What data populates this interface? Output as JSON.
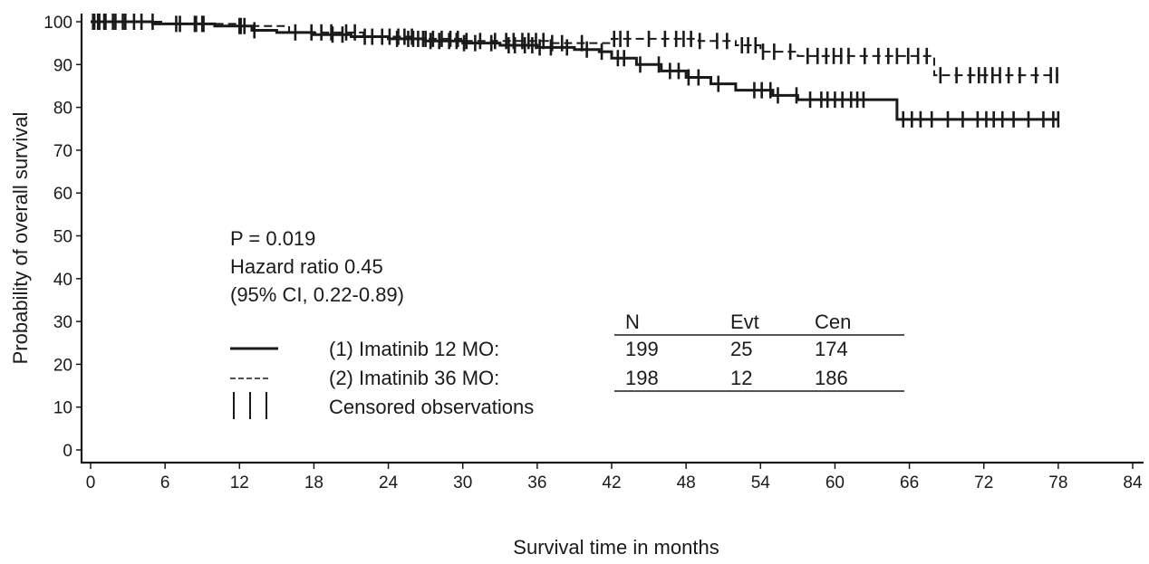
{
  "chart_data": {
    "type": "line",
    "subtype": "kaplan-meier",
    "title": "",
    "xlabel": "Survival time in months",
    "ylabel": "Probability of overall survival",
    "xlim": [
      0,
      84
    ],
    "ylim": [
      0,
      100
    ],
    "xticks": [
      "0",
      "6",
      "12",
      "18",
      "24",
      "30",
      "36",
      "42",
      "48",
      "54",
      "60",
      "66",
      "72",
      "78",
      "84"
    ],
    "yticks": [
      "0",
      "10",
      "20",
      "30",
      "40",
      "50",
      "60",
      "70",
      "80",
      "90",
      "100"
    ],
    "grid": false,
    "series": [
      {
        "name": "(1) Imatinib 12 MO:",
        "style": "solid",
        "steps": [
          [
            0,
            100
          ],
          [
            5,
            99.5
          ],
          [
            10,
            99
          ],
          [
            13,
            98
          ],
          [
            15,
            97.5
          ],
          [
            18,
            97
          ],
          [
            21,
            96.5
          ],
          [
            24,
            96
          ],
          [
            27,
            95.5
          ],
          [
            30,
            95
          ],
          [
            33,
            94.5
          ],
          [
            36,
            94
          ],
          [
            39,
            93.5
          ],
          [
            41,
            93
          ],
          [
            42,
            91.5
          ],
          [
            44,
            90
          ],
          [
            46,
            88.5
          ],
          [
            48,
            87
          ],
          [
            50,
            85.5
          ],
          [
            52,
            84
          ],
          [
            55,
            82.8
          ],
          [
            57,
            81.8
          ],
          [
            65,
            77.2
          ],
          [
            78,
            77.2
          ]
        ],
        "censored": [
          0.3,
          0.7,
          1.2,
          2.0,
          2.8,
          4.1,
          6.9,
          8.5,
          9.0,
          12.0,
          12.4,
          13.2,
          19.5,
          20.3,
          22.1,
          24.7,
          25.6,
          26.0,
          26.8,
          27.4,
          28.1,
          28.9,
          29.5,
          30.1,
          31.0,
          32.3,
          33.7,
          34.2,
          35.0,
          35.6,
          36.2,
          37.1,
          38.4,
          40.0,
          41.2,
          42.5,
          43.0,
          44.3,
          45.8,
          46.7,
          47.4,
          48.2,
          49.0,
          50.6,
          53.5,
          54.1,
          54.8,
          55.4,
          56.9,
          58.0,
          58.9,
          59.4,
          60.0,
          60.6,
          61.3,
          61.8,
          62.3,
          65.5,
          66.2,
          66.9,
          67.8,
          69.1,
          70.3,
          71.5,
          72.2,
          72.8,
          73.5,
          74.4,
          75.6,
          76.8,
          77.6,
          78.0
        ]
      },
      {
        "name": "(2) Imatinib 36 MO:",
        "style": "dashed",
        "steps": [
          [
            0,
            100
          ],
          [
            6,
            99.5
          ],
          [
            12,
            99
          ],
          [
            16,
            97.5
          ],
          [
            22,
            96.5
          ],
          [
            26,
            96
          ],
          [
            30,
            95.5
          ],
          [
            37,
            95
          ],
          [
            42,
            96
          ],
          [
            49,
            95.5
          ],
          [
            52,
            94.5
          ],
          [
            54,
            93
          ],
          [
            57,
            92
          ],
          [
            68,
            87.5
          ],
          [
            78,
            87.5
          ]
        ],
        "censored": [
          0.2,
          0.6,
          1.1,
          1.8,
          2.6,
          3.5,
          5.0,
          7.2,
          8.4,
          9.1,
          12.1,
          16.5,
          17.8,
          18.6,
          19.4,
          20.6,
          21.3,
          22.7,
          23.5,
          24.1,
          24.8,
          25.3,
          25.9,
          26.4,
          27.0,
          27.6,
          28.3,
          29.0,
          29.6,
          30.3,
          31.4,
          32.6,
          33.5,
          34.1,
          34.8,
          35.3,
          35.9,
          36.5,
          37.2,
          38.0,
          39.6,
          42.2,
          42.7,
          43.3,
          45.0,
          46.3,
          47.2,
          47.8,
          48.4,
          49.1,
          50.5,
          51.3,
          52.5,
          53.0,
          53.6,
          54.2,
          55.1,
          56.4,
          57.8,
          58.6,
          59.3,
          59.9,
          60.5,
          61.1,
          62.4,
          63.5,
          64.3,
          65.0,
          65.9,
          66.7,
          67.4,
          68.5,
          69.8,
          70.9,
          71.6,
          72.1,
          72.7,
          73.3,
          74.0,
          74.9,
          76.2,
          77.4,
          77.9
        ]
      }
    ],
    "annotations": {
      "p_value": "P = 0.019",
      "hazard_ratio": "Hazard ratio 0.45",
      "ci": "(95% CI, 0.22-0.89)"
    },
    "legend": {
      "placement": "lower-left",
      "censored_label": "Censored observations"
    },
    "table": {
      "columns": [
        "N",
        "Evt",
        "Cen"
      ],
      "rows": [
        {
          "values": [
            "199",
            "25",
            "174"
          ]
        },
        {
          "values": [
            "198",
            "12",
            "186"
          ]
        }
      ]
    }
  }
}
